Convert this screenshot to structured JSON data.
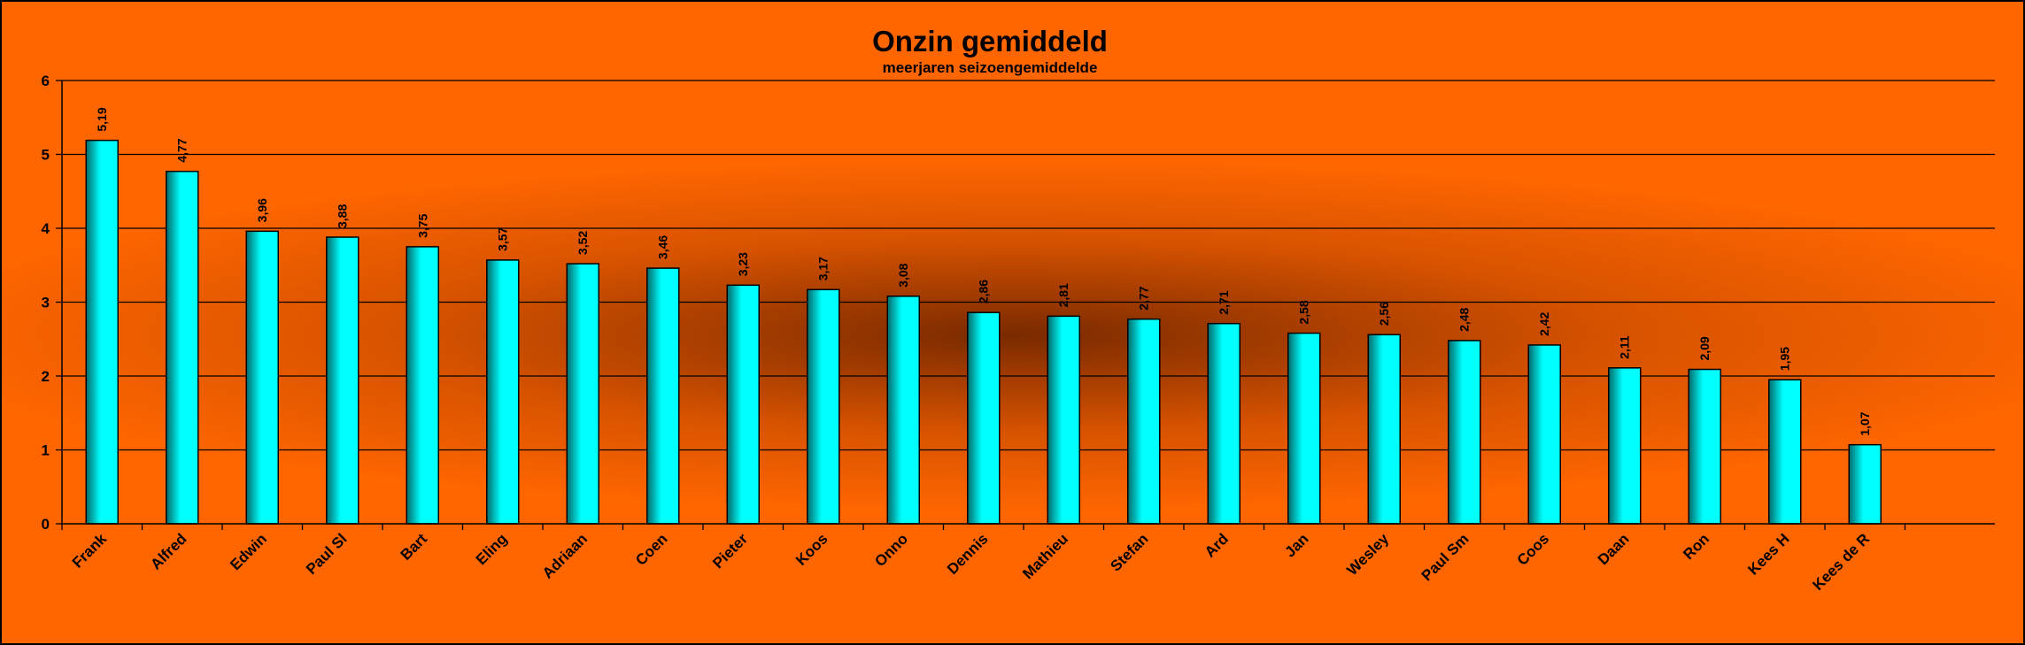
{
  "chart_data": {
    "type": "bar",
    "title": "Onzin gemiddeld",
    "subtitle": "meerjaren seizoengemiddelde",
    "categories": [
      "Frank",
      "Alfred",
      "Edwin",
      "Paul Sl",
      "Bart",
      "Eling",
      "Adriaan",
      "Coen",
      "Pieter",
      "Koos",
      "Onno",
      "Dennis",
      "Mathieu",
      "Stefan",
      "Ard",
      "Jan",
      "Wesley",
      "Paul Sm",
      "Coos",
      "Daan",
      "Ron",
      "Kees H",
      "Kees de R"
    ],
    "values": [
      5.19,
      4.77,
      3.96,
      3.88,
      3.75,
      3.57,
      3.52,
      3.46,
      3.23,
      3.17,
      3.08,
      2.86,
      2.81,
      2.77,
      2.71,
      2.58,
      2.56,
      2.48,
      2.42,
      2.11,
      2.09,
      1.95,
      1.07
    ],
    "value_labels": [
      "5,19",
      "4,77",
      "3,96",
      "3,88",
      "3,75",
      "3,57",
      "3,52",
      "3,46",
      "3,23",
      "3,17",
      "3,08",
      "2,86",
      "2,81",
      "2,77",
      "2,71",
      "2,58",
      "2,56",
      "2,48",
      "2,42",
      "2,11",
      "2,09",
      "1,95",
      "1,07"
    ],
    "y_ticks": [
      "0",
      "1",
      "2",
      "3",
      "4",
      "5",
      "6"
    ],
    "ylim": [
      0,
      6
    ],
    "grid": true,
    "legend": "none",
    "colors": {
      "background": "#ff6600",
      "background_center": "#7a2a00",
      "bar_light": "#00ffff",
      "bar_dark": "#006b6b",
      "grid": "#000000"
    }
  }
}
